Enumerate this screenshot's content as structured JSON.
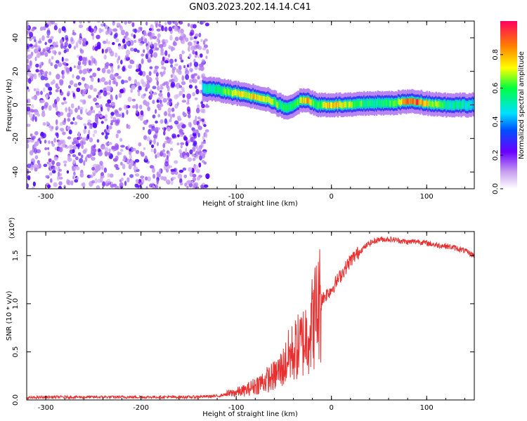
{
  "title": "GN03.2023.202.14.14.C41",
  "chart_data": [
    {
      "type": "heatmap",
      "xlabel": "Height of straight line (km)",
      "ylabel": "Frequency (Hz)",
      "xlim": [
        -320,
        150
      ],
      "ylim": [
        -50,
        50
      ],
      "x_ticks": [
        -300,
        -200,
        -100,
        0,
        100
      ],
      "y_ticks": [
        40,
        20,
        0,
        -20,
        -40
      ],
      "colorbar": {
        "label": "Normalized spectral amplitude",
        "range": [
          0.0,
          1.0
        ],
        "ticks": [
          "0.0",
          "0.2",
          "0.4",
          "0.6",
          "0.8"
        ]
      },
      "noise_region": {
        "x_range": [
          -320,
          -130
        ],
        "y_range": [
          -50,
          50
        ],
        "level": 0.1
      },
      "ridge": {
        "x": [
          -135,
          -120,
          -100,
          -80,
          -65,
          -55,
          -45,
          -35,
          -25,
          -15,
          0,
          20,
          40,
          60,
          80,
          90,
          100,
          120,
          150
        ],
        "freq": [
          10,
          9,
          7,
          5,
          3,
          0,
          -2,
          2,
          3,
          0,
          0,
          0,
          1,
          1,
          2,
          2,
          1,
          0,
          0
        ],
        "amplitude": [
          0.45,
          0.55,
          0.7,
          0.75,
          0.7,
          0.6,
          0.55,
          0.65,
          0.8,
          0.6,
          0.8,
          0.7,
          0.55,
          0.55,
          0.85,
          0.9,
          0.75,
          0.55,
          0.45
        ]
      }
    },
    {
      "type": "line",
      "xlabel": "Height of straight line (km)",
      "ylabel": "SNR (10 * v/v)",
      "y_multiplier": "(x10⁴)",
      "xlim": [
        -320,
        150
      ],
      "ylim": [
        0,
        1.75
      ],
      "x_ticks": [
        -300,
        -200,
        -100,
        0,
        100
      ],
      "y_ticks": [
        "0.0",
        "0.5",
        "1.0",
        "1.5"
      ],
      "color": "#e83030",
      "x": [
        -320,
        -300,
        -250,
        -200,
        -150,
        -120,
        -110,
        -100,
        -90,
        -80,
        -70,
        -60,
        -50,
        -45,
        -40,
        -35,
        -30,
        -25,
        -20,
        -15,
        -10,
        -5,
        0,
        10,
        20,
        30,
        40,
        50,
        60,
        70,
        80,
        90,
        100,
        110,
        120,
        130,
        140,
        150
      ],
      "y": [
        0.02,
        0.03,
        0.03,
        0.03,
        0.03,
        0.04,
        0.06,
        0.08,
        0.1,
        0.15,
        0.2,
        0.25,
        0.35,
        0.45,
        0.5,
        0.55,
        0.6,
        0.7,
        0.8,
        0.95,
        1.05,
        1.1,
        1.15,
        1.3,
        1.45,
        1.55,
        1.63,
        1.67,
        1.67,
        1.66,
        1.64,
        1.65,
        1.63,
        1.61,
        1.6,
        1.58,
        1.55,
        1.5
      ]
    }
  ]
}
